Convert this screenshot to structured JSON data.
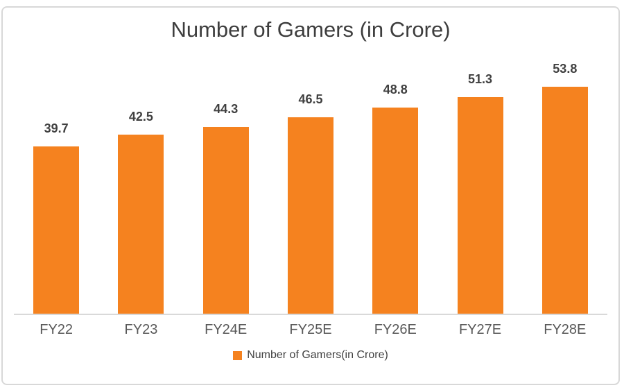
{
  "chart_data": {
    "type": "bar",
    "title": "Number of Gamers (in Crore)",
    "categories": [
      "FY22",
      "FY23",
      "FY24E",
      "FY25E",
      "FY26E",
      "FY27E",
      "FY28E"
    ],
    "values": [
      39.7,
      42.5,
      44.3,
      46.5,
      48.8,
      51.3,
      53.8
    ],
    "series_name": "Number of Gamers(in Crore)",
    "xlabel": "",
    "ylabel": "",
    "ylim": [
      0,
      61.5
    ],
    "grid": false,
    "data_labels": true,
    "legend_position": "bottom",
    "bar_color": "#F5821F",
    "title_color": "#3d3d3d",
    "value_label_color": "#404040",
    "tick_label_color": "#595959",
    "axis_line_color": "#d9d9d9",
    "card_border_color": "#d8d8d8"
  },
  "legend": {
    "label": "Number of Gamers(in Crore)"
  }
}
